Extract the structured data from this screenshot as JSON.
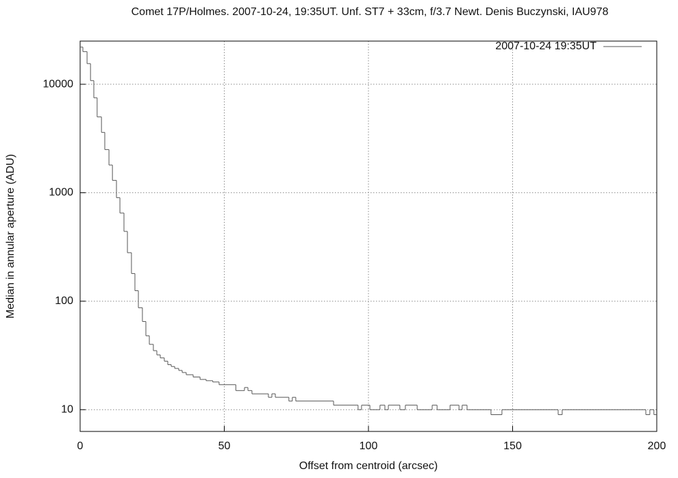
{
  "chart_data": {
    "type": "step",
    "title": "Comet 17P/Holmes. 2007-10-24, 19:35UT. Unf. ST7 + 33cm, f/3.7 Newt. Denis Buczynski, IAU978",
    "x_label": "Offset from centroid (arcsec)",
    "y_label": "Median in annular aperture (ADU)",
    "x": [
      0,
      0.95,
      2.4,
      3.6,
      4.75,
      5.9,
      7.4,
      8.55,
      10,
      11.2,
      12.6,
      13.8,
      15.2,
      16.4,
      17.8,
      19,
      20.2,
      21.6,
      22.8,
      24,
      25.4,
      26.6,
      27.8,
      29.2,
      30.4,
      31.6,
      32.8,
      34.2,
      35.4,
      36.8,
      39.2,
      41.6,
      43.7,
      46,
      48.2,
      54,
      57,
      58.2,
      59.6,
      65.3,
      66.5,
      67.7,
      72.4,
      73.6,
      74.8,
      87.9,
      96.4,
      97.6,
      100.5,
      104,
      105.7,
      106.9,
      110.9,
      112.8,
      116.9,
      122.1,
      123.8,
      128.3,
      131.4,
      132.5,
      134.2,
      142.5,
      146.3,
      165.8,
      167.2,
      196.2,
      197.6,
      199
    ],
    "series": [
      {
        "name": "2007-10-24 19:35UT",
        "color": "#555555",
        "values": [
          22000,
          20000,
          15500,
          10800,
          7500,
          5000,
          3600,
          2500,
          1800,
          1300,
          900,
          650,
          440,
          280,
          180,
          125,
          87,
          65,
          48,
          40,
          35,
          32,
          30,
          28,
          26,
          25,
          24,
          23,
          22,
          21,
          20,
          19,
          18.5,
          18,
          17,
          15,
          16,
          15,
          14,
          13,
          14,
          13,
          12,
          13,
          12,
          11,
          10,
          11,
          10,
          11,
          10,
          11,
          10,
          11,
          10,
          11,
          10,
          11,
          10,
          11,
          10,
          9,
          10,
          9,
          10,
          9,
          10,
          9
        ]
      }
    ],
    "xlim": [
      0,
      200
    ],
    "xticks": [
      0,
      50,
      100,
      150,
      200
    ],
    "ylim": [
      6.3,
      25000
    ],
    "yticks": [
      10,
      100,
      1000,
      10000
    ],
    "log_y": true,
    "grid": true,
    "legend": "top-right"
  }
}
